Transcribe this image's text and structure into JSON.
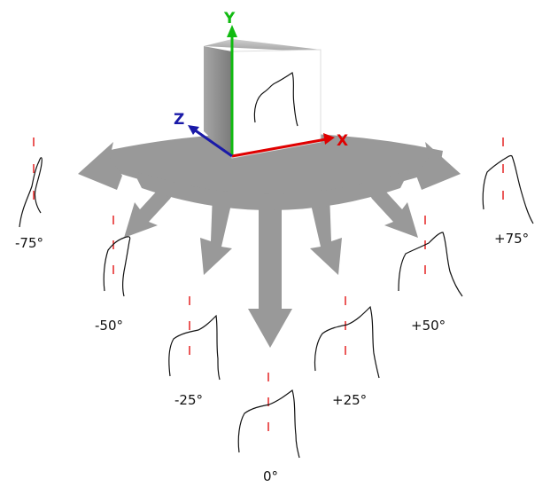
{
  "axes": {
    "x": {
      "label": "X",
      "color": "#e00000"
    },
    "y": {
      "label": "Y",
      "color": "#11bb11"
    },
    "z": {
      "label": "Z",
      "color": "#1a1aa8"
    }
  },
  "views": [
    {
      "id": "m75",
      "label": "-75°"
    },
    {
      "id": "m50",
      "label": "-50°"
    },
    {
      "id": "m25",
      "label": "-25°"
    },
    {
      "id": "0",
      "label": "0°"
    },
    {
      "id": "p25",
      "label": "+25°"
    },
    {
      "id": "p50",
      "label": "+50°"
    },
    {
      "id": "p75",
      "label": "+75°"
    }
  ],
  "colors": {
    "arrow": "#999999",
    "cube_front": "#ffffff",
    "cube_side": "#8c8c8c",
    "cube_top": "#b4b4b4",
    "stroke": "#111111",
    "center_line": "#e00000"
  }
}
